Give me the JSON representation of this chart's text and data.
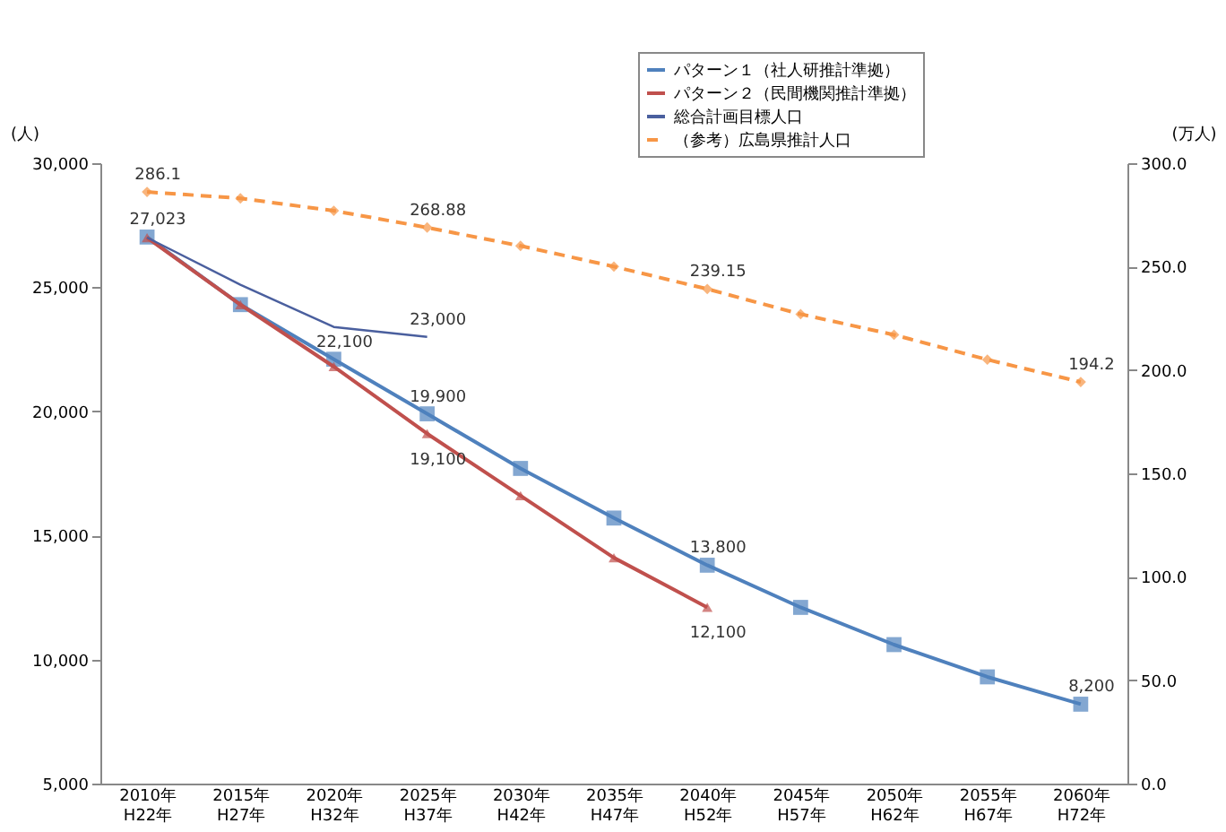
{
  "chart_data": {
    "type": "line",
    "categories": [
      "2010年\nH22年",
      "2015年\nH27年",
      "2020年\nH32年",
      "2025年\nH37年",
      "2030年\nH42年",
      "2035年\nH47年",
      "2040年\nH52年",
      "2045年\nH57年",
      "2050年\nH62年",
      "2055年\nH67年",
      "2060年\nH72年"
    ],
    "ylabel": "(人)",
    "y2label": "(万人)",
    "ylim": [
      5000,
      30000
    ],
    "yticks": [
      {
        "value": 5000,
        "label": "5,000"
      },
      {
        "value": 10000,
        "label": "10,000"
      },
      {
        "value": 15000,
        "label": "15,000"
      },
      {
        "value": 20000,
        "label": "20,000"
      },
      {
        "value": 25000,
        "label": "25,000"
      },
      {
        "value": 30000,
        "label": "30,000"
      }
    ],
    "y2lim": [
      0,
      300
    ],
    "y2ticks": [
      {
        "value": 0,
        "label": "0.0"
      },
      {
        "value": 50,
        "label": "50.0"
      },
      {
        "value": 100,
        "label": "100.0"
      },
      {
        "value": 150,
        "label": "150.0"
      },
      {
        "value": 200,
        "label": "200.0"
      },
      {
        "value": 250,
        "label": "250.0"
      },
      {
        "value": 300,
        "label": "300.0"
      }
    ],
    "series": [
      {
        "name": "パターン１（社人研推計準拠）",
        "color": "#4f81bd",
        "marker": "square",
        "line_style": "solid",
        "values": [
          27023,
          24300,
          22100,
          19900,
          17700,
          15700,
          13800,
          12100,
          10600,
          9300,
          8200
        ],
        "value_labels": [
          "27,023",
          null,
          "22,100",
          "19,900",
          null,
          null,
          "13,800",
          null,
          null,
          null,
          "8,200"
        ]
      },
      {
        "name": "パターン２（民間機関推計準拠）",
        "color": "#c0504d",
        "marker": "triangle",
        "line_style": "solid",
        "values": [
          27000,
          24300,
          21800,
          19100,
          16600,
          14100,
          12100,
          null,
          null,
          null,
          null
        ],
        "value_labels": [
          null,
          null,
          null,
          "19,100",
          null,
          null,
          "12,100",
          null,
          null,
          null,
          null
        ]
      },
      {
        "name": "総合計画目標人口",
        "color": "#4a5f9e",
        "marker": "none",
        "line_style": "solid",
        "values": [
          27000,
          25100,
          23400,
          23000,
          null,
          null,
          null,
          null,
          null,
          null,
          null
        ],
        "value_labels": [
          null,
          null,
          null,
          "23,000",
          null,
          null,
          null,
          null,
          null,
          null,
          null
        ]
      },
      {
        "name": "（参考）広島県推計人口",
        "color": "#f79646",
        "marker": "diamond",
        "line_style": "dashed",
        "axis": "y2",
        "values": [
          286.1,
          283,
          277,
          268.88,
          260,
          250,
          239.15,
          227,
          217,
          205,
          194.2
        ],
        "value_labels": [
          "286.1",
          null,
          null,
          "268.88",
          null,
          null,
          "239.15",
          null,
          null,
          null,
          "194.2"
        ]
      }
    ],
    "legend": "top right",
    "grid": false
  }
}
